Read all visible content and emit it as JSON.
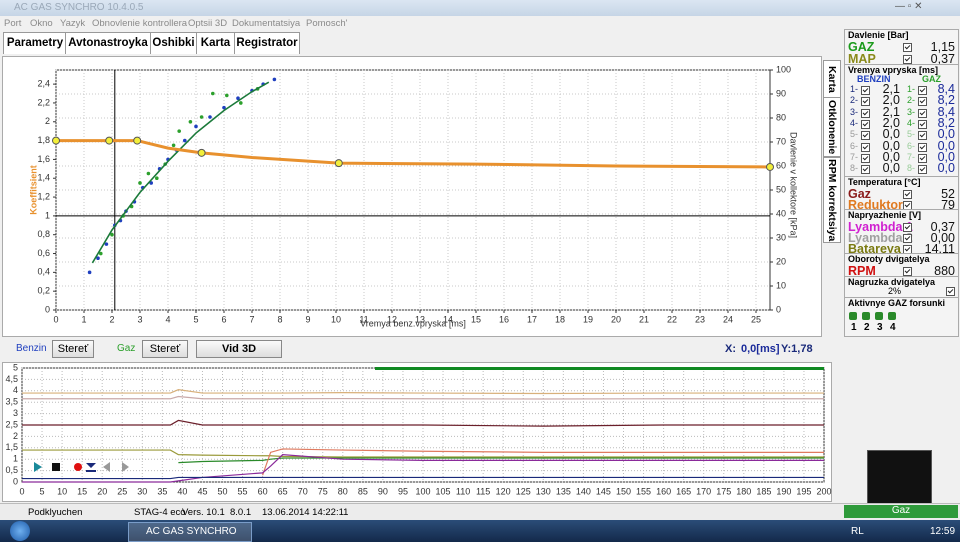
{
  "window": {
    "title": "AC GAS SYNCHRO 10.4.0.5"
  },
  "menu": [
    "Port",
    "Okno",
    "Yazyk",
    "Obnovlenie kontrollera",
    "Optsii 3D",
    "Dokumentatsiya",
    "Pomosch'"
  ],
  "tabs": [
    "Parametry",
    "Avtonastroyka",
    "Oshibki",
    "Karta",
    "Registrator"
  ],
  "side_tabs": [
    "Karta",
    "Otklonenie",
    "RPM korrektsiya"
  ],
  "map_chart": {
    "x_label": "Vremya benz.vpryska [ms]",
    "y_label": "Koeffitsient",
    "y2_label": "Davlenie v kollektore [kPa]",
    "xlim": [
      0,
      25.5
    ],
    "xticks": [
      0,
      1,
      2,
      3,
      4,
      5,
      6,
      7,
      8,
      9,
      10,
      11,
      12,
      13,
      14,
      15,
      16,
      17,
      18,
      19,
      20,
      21,
      22,
      23,
      24,
      25
    ],
    "ylim": [
      0,
      2.55
    ],
    "yticks": [
      0,
      {
        "value": 0.2,
        "label": "0,2"
      },
      {
        "value": 0.4,
        "label": "0,4"
      },
      {
        "value": 0.6,
        "label": "0,6"
      },
      {
        "value": 0.8,
        "label": "0,8"
      },
      1,
      {
        "value": 1.2,
        "label": "1,2"
      },
      {
        "value": 1.4,
        "label": "1,4"
      },
      {
        "value": 1.6,
        "label": "1,6"
      },
      {
        "value": 1.8,
        "label": "1,8"
      },
      2,
      {
        "value": 2.2,
        "label": "2,2"
      },
      {
        "value": 2.4,
        "label": "2,4"
      }
    ],
    "y2lim": [
      0,
      100
    ],
    "y2ticks": [
      0,
      10,
      20,
      30,
      40,
      50,
      60,
      70,
      80,
      90,
      100
    ],
    "grid": true,
    "cursor_x": 2.1,
    "ref_y": 1,
    "map_line": {
      "color": "#e8912e",
      "x": [
        0,
        1.9,
        2.9,
        4,
        5.2,
        7,
        10.1,
        15,
        20,
        25.5
      ],
      "values": [
        1.8,
        1.8,
        1.8,
        1.72,
        1.67,
        1.62,
        1.56,
        1.55,
        1.53,
        1.52
      ]
    },
    "map_nodes": {
      "color": "#f2ef3a",
      "x": [
        0,
        1.9,
        2.9,
        5.2,
        10.1,
        25.5
      ],
      "values": [
        1.8,
        1.8,
        1.8,
        1.67,
        1.56,
        1.52
      ]
    },
    "fit_curve": {
      "color": "#1b7a3a",
      "x": [
        1.3,
        2,
        3,
        4,
        5,
        6,
        7,
        7.6
      ],
      "values": [
        0.5,
        0.85,
        1.25,
        1.58,
        1.88,
        2.12,
        2.32,
        2.42
      ]
    },
    "series": [
      {
        "name": "Benzin",
        "color": "#1f3fbf",
        "x": [
          1.2,
          1.5,
          1.8,
          2.1,
          2.3,
          2.5,
          2.8,
          3.1,
          3.4,
          3.7,
          4.0,
          4.3,
          4.6,
          5.0,
          5.5,
          6.0,
          6.5,
          7.0,
          7.4,
          7.8
        ],
        "values": [
          0.4,
          0.55,
          0.7,
          0.9,
          0.95,
          1.05,
          1.15,
          1.3,
          1.35,
          1.5,
          1.6,
          1.7,
          1.8,
          1.95,
          2.05,
          2.15,
          2.25,
          2.33,
          2.4,
          2.45
        ]
      },
      {
        "name": "Gaz",
        "color": "#2ca02c",
        "x": [
          1.6,
          2.0,
          2.4,
          2.7,
          3.0,
          3.3,
          3.6,
          3.9,
          4.2,
          4.4,
          4.8,
          5.2,
          5.6,
          6.1,
          6.6,
          7.2
        ],
        "values": [
          0.6,
          0.8,
          1.0,
          1.1,
          1.35,
          1.45,
          1.4,
          1.55,
          1.75,
          1.9,
          2.0,
          2.05,
          2.3,
          2.28,
          2.2,
          2.35
        ]
      }
    ]
  },
  "controls": {
    "clear": "Stereť",
    "view3d": "Vid 3D",
    "x_label": "X:",
    "x_value": "0,0[ms]",
    "y_text": "Y:1,78"
  },
  "recorder_chart": {
    "xlim": [
      0,
      200
    ],
    "xticks": [
      0,
      5,
      10,
      15,
      20,
      25,
      30,
      35,
      40,
      45,
      50,
      55,
      60,
      65,
      70,
      75,
      80,
      85,
      90,
      95,
      100,
      105,
      110,
      115,
      120,
      125,
      130,
      135,
      140,
      145,
      150,
      155,
      160,
      165,
      170,
      175,
      180,
      185,
      190,
      195,
      200
    ],
    "ylim": [
      0,
      5
    ],
    "yticks": [
      0,
      {
        "value": 0.5,
        "label": "0,5"
      },
      1,
      {
        "value": 1.5,
        "label": "1,5"
      },
      2,
      {
        "value": 2.5,
        "label": "2,5"
      },
      3,
      {
        "value": 3.5,
        "label": "3,5"
      },
      4,
      {
        "value": 4.5,
        "label": "4,5"
      },
      5
    ],
    "grid": true,
    "x": [
      0,
      20,
      37,
      39,
      45,
      60,
      62,
      65,
      80,
      100,
      130,
      160,
      200
    ],
    "series": [
      {
        "color": "#d8b07a",
        "values": [
          3.9,
          3.9,
          3.9,
          4.05,
          3.9,
          3.9,
          3.9,
          3.9,
          3.92,
          3.9,
          3.88,
          3.9,
          3.9
        ]
      },
      {
        "color": "#c9a9a9",
        "values": [
          3.65,
          3.65,
          3.65,
          3.75,
          3.65,
          3.65,
          3.65,
          3.65,
          3.66,
          3.65,
          3.64,
          3.65,
          3.65
        ]
      },
      {
        "color": "#6b1f2a",
        "values": [
          2.5,
          2.5,
          2.5,
          2.7,
          2.5,
          2.5,
          2.5,
          2.5,
          2.5,
          2.5,
          2.45,
          2.5,
          2.5
        ]
      },
      {
        "color": "#9a9a3a",
        "values": [
          1.4,
          1.4,
          1.4,
          1.2,
          1.18,
          1.15,
          1.15,
          1.12,
          1.1,
          1.1,
          1.1,
          1.1,
          1.1
        ]
      },
      {
        "color": "#2a8a2a",
        "values": [
          null,
          null,
          null,
          0.85,
          0.9,
          0.95,
          1.0,
          1.05,
          1.05,
          1.05,
          1.05,
          1.05,
          1.05
        ]
      },
      {
        "color": "#e07a5f",
        "values": [
          null,
          null,
          null,
          null,
          null,
          0.3,
          1.3,
          1.45,
          1.4,
          1.35,
          1.3,
          1.3,
          1.3
        ]
      },
      {
        "color": "#8a2a9a",
        "values": [
          0,
          0,
          0,
          0.05,
          0.2,
          0.4,
          0.7,
          1.2,
          1.0,
          0.95,
          0.95,
          0.95,
          0.95
        ]
      },
      {
        "color": "#1a2a7a",
        "values": [
          0.15,
          0.15,
          0.15,
          0.2,
          0.2,
          0.2,
          0.2,
          0.2,
          0.2,
          0.2,
          0.2,
          0.2,
          0.2
        ]
      }
    ]
  },
  "panel": {
    "pressure": {
      "title": "Davlenie [Bar]",
      "rows": [
        {
          "label": "GAZ",
          "value": "1,15",
          "color": "#1a9a1a"
        },
        {
          "label": "MAP",
          "value": "0,37",
          "color": "#8a8a1a"
        }
      ]
    },
    "injection": {
      "title": "Vremya vpryska [ms]",
      "benzin_header": "BENZIN",
      "gaz_header": "GAZ",
      "rows": [
        {
          "label": "1-",
          "benzin": "2,1",
          "gaz": "8,4"
        },
        {
          "label": "2-",
          "benzin": "2,0",
          "gaz": "8,2"
        },
        {
          "label": "3-",
          "benzin": "2,1",
          "gaz": "8,4"
        },
        {
          "label": "4-",
          "benzin": "2,0",
          "gaz": "8,2"
        },
        {
          "label": "5-",
          "benzin": "0,0",
          "gaz": "0,0"
        },
        {
          "label": "6-",
          "benzin": "0,0",
          "gaz": "0,0"
        },
        {
          "label": "7-",
          "benzin": "0,0",
          "gaz": "0,0"
        },
        {
          "label": "8-",
          "benzin": "0,0",
          "gaz": "0,0"
        }
      ]
    },
    "temperature": {
      "title": "Temperatura [°C]",
      "rows": [
        {
          "label": "Gaz",
          "value": "52",
          "color": "#8a1a1a"
        },
        {
          "label": "Reduktor",
          "value": "79",
          "color": "#e07a20"
        }
      ]
    },
    "voltage": {
      "title": "Napryazhenie [V]",
      "rows": [
        {
          "label": "Lyambda 1",
          "value": "0,37",
          "color": "#d020d0"
        },
        {
          "label": "Lyambda 2",
          "value": "0,00",
          "color": "#a0a0a0"
        },
        {
          "label": "Batareya",
          "value": "14,11",
          "color": "#7a7a10"
        }
      ]
    },
    "rpm": {
      "title": "Oboroty dvigatelya",
      "rows": [
        {
          "label": "RPM",
          "value": "880",
          "color": "#d01010"
        }
      ]
    },
    "load": {
      "title": "Nagruzka dvigatelya",
      "value": "2%"
    },
    "injectors": {
      "title": "Aktivnye GAZ forsunki",
      "labels": [
        "1",
        "2",
        "3",
        "4"
      ]
    }
  },
  "status": {
    "state": "Podklyuchen",
    "device": "STAG-4 eco",
    "version": "Vers. 10.1",
    "firmware": "8.0.1",
    "date": "13.06.2014 14:22:11",
    "fuel": "Gaz"
  },
  "taskbar": {
    "app": "AC GAS SYNCHRO",
    "lang": "RL",
    "time": "12:59"
  }
}
